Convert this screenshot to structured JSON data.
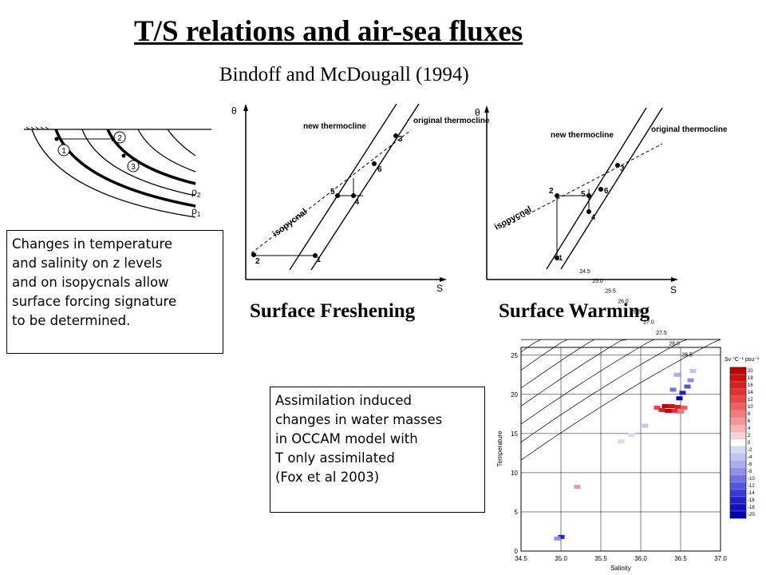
{
  "title": "T/S relations and air-sea fluxes",
  "subtitle": "Bindoff and McDougall (1994)",
  "captions": {
    "freshening": "Surface Freshening",
    "warming": "Surface Warming"
  },
  "note_left": [
    "Changes in temperature",
    "and salinity on z levels",
    "and on isopycnals allow",
    "surface forcing signature",
    "to be determined."
  ],
  "note_right": [
    "Assimilation induced",
    "changes in water masses",
    "in OCCAM model with",
    "T only assimilated",
    "(Fox et al 2003)"
  ],
  "schematic": {
    "labels": [
      "1",
      "2",
      "3"
    ],
    "rho2": "ρ",
    "rho2_sub": "2",
    "rho1": "ρ",
    "rho1_sub": "1"
  },
  "diagram_freshening": {
    "y_axis": "θ",
    "x_axis": "S",
    "new_thermocline": "new thermocline",
    "original_thermocline": "original\nthermocline",
    "isopycnal": "isopycnal",
    "points": [
      "1",
      "2",
      "3",
      "4",
      "5",
      "6"
    ]
  },
  "diagram_warming": {
    "y_axis": "θ",
    "x_axis": "S",
    "new_thermocline": "new thermocline",
    "original_thermocline": "original\nthermocline",
    "isopycnal": "isopycnal",
    "points": [
      "1",
      "2",
      "3",
      "4",
      "5",
      "6"
    ]
  },
  "ts_plot": {
    "xlabel": "Salinity",
    "ylabel": "Temperature",
    "x_ticks": [
      "34.5",
      "35.0",
      "35.5",
      "36.0",
      "36.5",
      "37.0"
    ],
    "y_ticks": [
      "0",
      "5",
      "10",
      "15",
      "20",
      "25"
    ],
    "density_labels": [
      "24.5",
      "25.0",
      "25.5",
      "26.0",
      "26.5",
      "27.0",
      "27.5",
      "28.0",
      "28.5"
    ],
    "colorbar_title": "Sv °C⁻¹ psu⁻¹",
    "colorbar_ticks": [
      "20",
      "18",
      "16",
      "14",
      "12",
      "10",
      "8",
      "6",
      "4",
      "2",
      "0",
      "-2",
      "-4",
      "-6",
      "-8",
      "-10",
      "-12",
      "-14",
      "-16",
      "-18",
      "-20"
    ],
    "colorbar_colors": [
      "#c00000",
      "#cc1010",
      "#d82020",
      "#e03030",
      "#e84545",
      "#ee6060",
      "#f27a7a",
      "#f59696",
      "#f8b4b4",
      "#fbd2d2",
      "#ffffff",
      "#d8d8f8",
      "#c4c4f4",
      "#acacef",
      "#9090ea",
      "#7272e4",
      "#5555de",
      "#3a3ad6",
      "#2020cc",
      "#1010c0",
      "#0000b0"
    ]
  }
}
